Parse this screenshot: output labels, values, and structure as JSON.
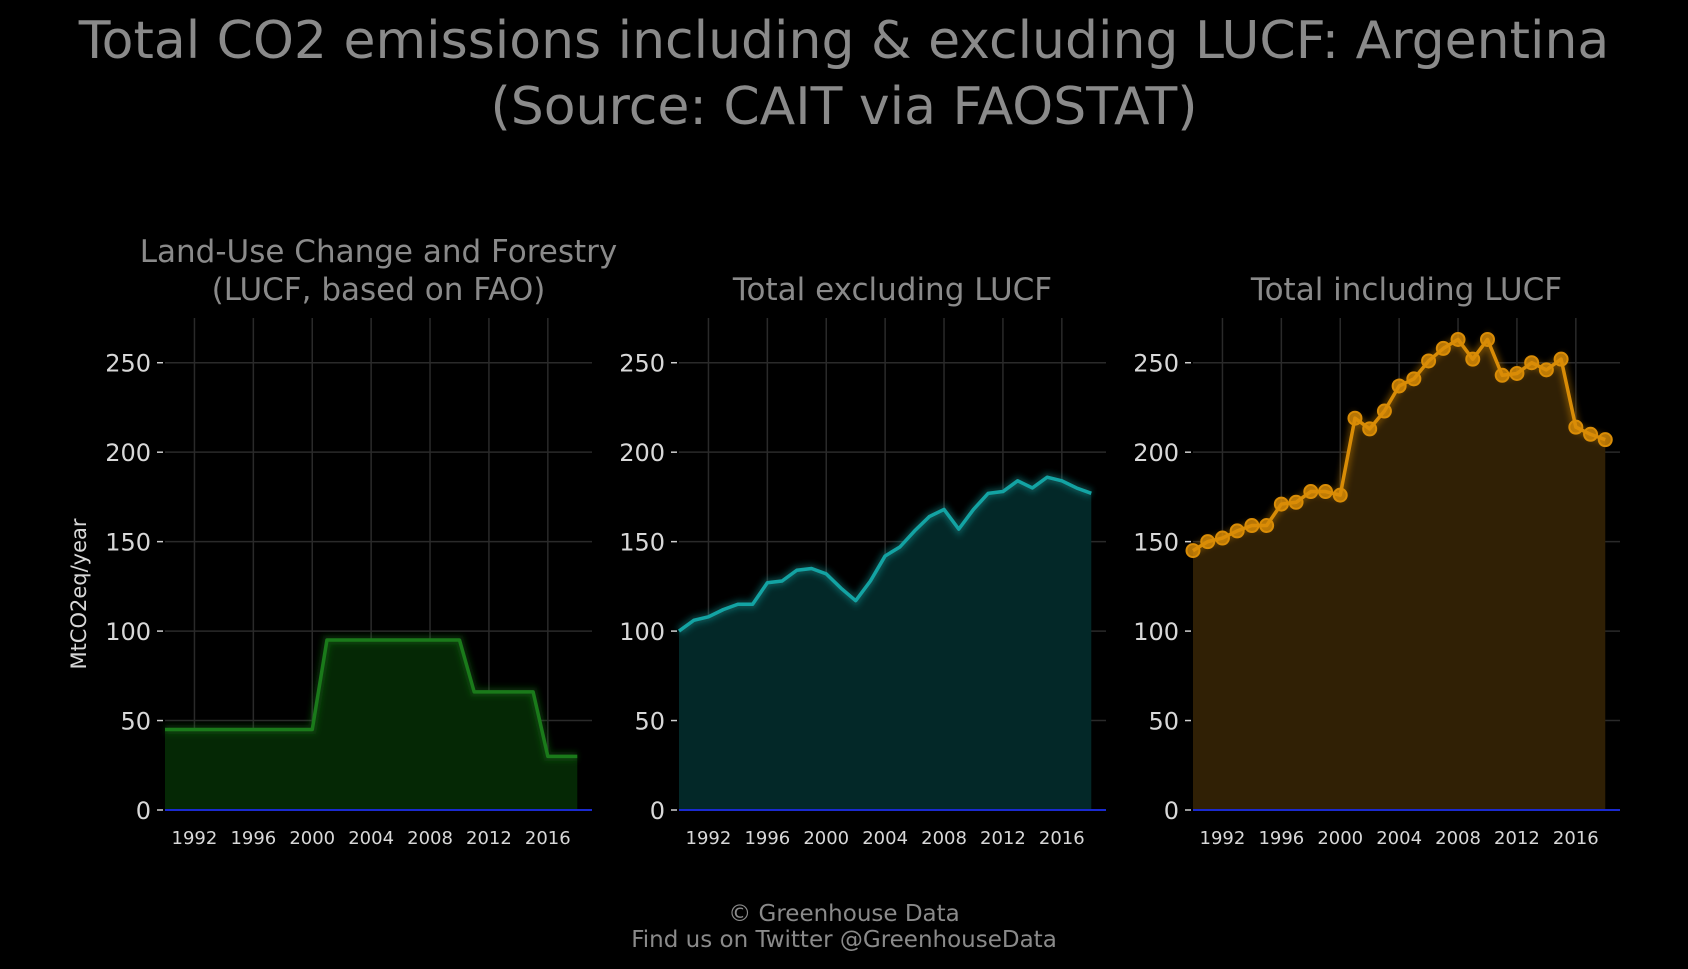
{
  "title_line1": "Total CO2 emissions including & excluding LUCF: Argentina",
  "title_line2": "(Source: CAIT via FAOSTAT)",
  "footer_line1": "© Greenhouse Data",
  "footer_line2": "Find us on Twitter @GreenhouseData",
  "chart_data": [
    {
      "type": "area",
      "title_lines": [
        "Land-Use Change and Forestry",
        "(LUCF, based on FAO)"
      ],
      "ylabel": "MtCO2eq/year",
      "xlim": [
        1990,
        2019
      ],
      "ylim": [
        0,
        275
      ],
      "x_ticks": [
        1992,
        1996,
        2000,
        2004,
        2008,
        2012,
        2016
      ],
      "y_ticks": [
        0,
        50,
        100,
        150,
        200,
        250
      ],
      "grid": true,
      "color": "#1a7a1a",
      "fill": "#052805",
      "markers": false,
      "x": [
        1990,
        1991,
        1992,
        1993,
        1994,
        1995,
        1996,
        1997,
        1998,
        1999,
        2000,
        2001,
        2002,
        2003,
        2004,
        2005,
        2006,
        2007,
        2008,
        2009,
        2010,
        2011,
        2012,
        2013,
        2014,
        2015,
        2016,
        2017,
        2018
      ],
      "y": [
        45,
        45,
        45,
        45,
        45,
        45,
        45,
        45,
        45,
        45,
        45,
        95,
        95,
        95,
        95,
        95,
        95,
        95,
        95,
        95,
        95,
        66,
        66,
        66,
        66,
        66,
        30,
        30,
        30
      ]
    },
    {
      "type": "area",
      "title_lines": [
        "Total excluding LUCF"
      ],
      "ylabel": "",
      "xlim": [
        1990,
        2019
      ],
      "ylim": [
        0,
        275
      ],
      "x_ticks": [
        1992,
        1996,
        2000,
        2004,
        2008,
        2012,
        2016
      ],
      "y_ticks": [
        0,
        50,
        100,
        150,
        200,
        250
      ],
      "grid": true,
      "color": "#13a3a3",
      "fill": "#032828",
      "markers": false,
      "x": [
        1990,
        1991,
        1992,
        1993,
        1994,
        1995,
        1996,
        1997,
        1998,
        1999,
        2000,
        2001,
        2002,
        2003,
        2004,
        2005,
        2006,
        2007,
        2008,
        2009,
        2010,
        2011,
        2012,
        2013,
        2014,
        2015,
        2016,
        2017,
        2018
      ],
      "y": [
        100,
        106,
        108,
        112,
        115,
        115,
        127,
        128,
        134,
        135,
        132,
        124,
        117,
        128,
        142,
        147,
        156,
        164,
        168,
        157,
        168,
        177,
        178,
        184,
        180,
        186,
        184,
        180,
        177
      ]
    },
    {
      "type": "area",
      "title_lines": [
        "Total including LUCF"
      ],
      "ylabel": "",
      "xlim": [
        1990,
        2019
      ],
      "ylim": [
        0,
        275
      ],
      "x_ticks": [
        1992,
        1996,
        2000,
        2004,
        2008,
        2012,
        2016
      ],
      "y_ticks": [
        0,
        50,
        100,
        150,
        200,
        250
      ],
      "grid": true,
      "color": "#d98c06",
      "fill": "#302005",
      "markers": true,
      "x": [
        1990,
        1991,
        1992,
        1993,
        1994,
        1995,
        1996,
        1997,
        1998,
        1999,
        2000,
        2001,
        2002,
        2003,
        2004,
        2005,
        2006,
        2007,
        2008,
        2009,
        2010,
        2011,
        2012,
        2013,
        2014,
        2015,
        2016,
        2017,
        2018
      ],
      "y": [
        145,
        150,
        152,
        156,
        159,
        159,
        171,
        172,
        178,
        178,
        176,
        219,
        213,
        223,
        237,
        241,
        251,
        258,
        263,
        252,
        263,
        243,
        244,
        250,
        246,
        252,
        214,
        210,
        207
      ]
    }
  ]
}
